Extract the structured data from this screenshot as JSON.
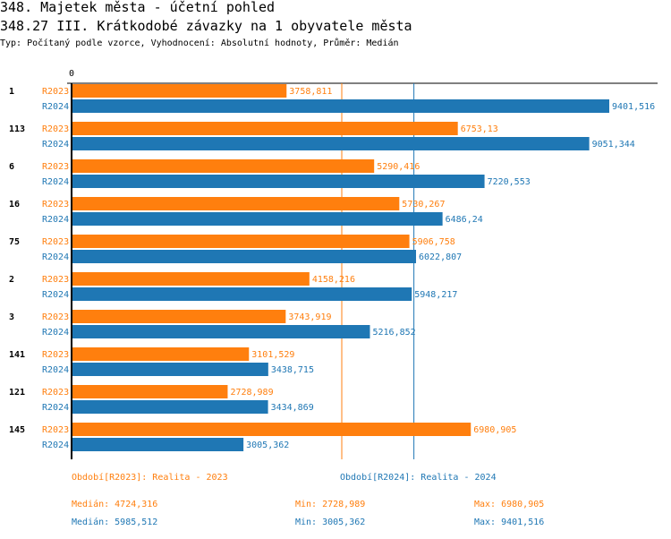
{
  "header": {
    "title": "348. Majetek města - účetní pohled",
    "subtitle": "348.27 III. Krátkodobé závazky na 1 obyvatele města",
    "description": "Typ: Počítaný podle vzorce, Vyhodnocení: Absolutní hodnoty, Průměr: Medián"
  },
  "colors": {
    "R2023": "#ff7f0e",
    "R2024": "#1f77b4"
  },
  "chart_data": {
    "type": "bar",
    "orientation": "horizontal",
    "xlim": [
      0,
      9401.516
    ],
    "x_tick_labels": [
      "0"
    ],
    "categories": [
      "1",
      "113",
      "6",
      "16",
      "75",
      "2",
      "3",
      "141",
      "121",
      "145"
    ],
    "series": [
      {
        "name": "R2023",
        "values": [
          3758.811,
          6753.13,
          5290.416,
          5730.267,
          5906.758,
          4158.216,
          3743.919,
          3101.529,
          2728.989,
          6980.905
        ],
        "labels": [
          "3758,811",
          "6753,13",
          "5290,416",
          "5730,267",
          "5906,758",
          "4158,216",
          "3743,919",
          "3101,529",
          "2728,989",
          "6980,905"
        ],
        "median": 4724.316
      },
      {
        "name": "R2024",
        "values": [
          9401.516,
          9051.344,
          7220.553,
          6486.24,
          6022.807,
          5948.217,
          5216.852,
          3438.715,
          3434.869,
          3005.362
        ],
        "labels": [
          "9401,516",
          "9051,344",
          "7220,553",
          "6486,24",
          "6022,807",
          "5948,217",
          "5216,852",
          "3438,715",
          "3434,869",
          "3005,362"
        ],
        "median": 5985.512
      }
    ]
  },
  "legend": {
    "r2023": {
      "label": "Období[R2023]: Realita - 2023",
      "median": "Medián: 4724,316",
      "min": "Min: 2728,989",
      "max": "Max: 6980,905"
    },
    "r2024": {
      "label": "Období[R2024]: Realita - 2024",
      "median": "Medián: 5985,512",
      "min": "Min: 3005,362",
      "max": "Max: 9401,516"
    }
  }
}
